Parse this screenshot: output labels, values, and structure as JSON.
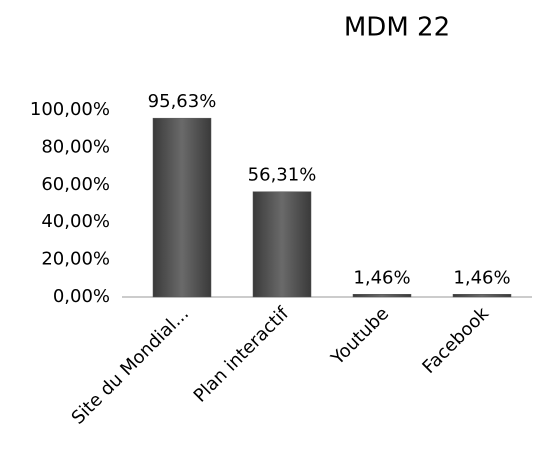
{
  "chart_data": {
    "type": "bar",
    "title": "MDM 22",
    "categories": [
      "Site du Mondial...",
      "Plan interactif",
      "Youtube",
      "Facebook"
    ],
    "values": [
      95.63,
      56.31,
      1.46,
      1.46
    ],
    "value_labels": [
      "95,63%",
      "56,31%",
      "1,46%",
      "1,46%"
    ],
    "color": "#555555",
    "ylim": [
      0,
      100
    ],
    "yticks": [
      {
        "value": 0,
        "label": "0,00%"
      },
      {
        "value": 20,
        "label": "20,00%"
      },
      {
        "value": 40,
        "label": "40,00%"
      },
      {
        "value": 60,
        "label": "60,00%"
      },
      {
        "value": 80,
        "label": "80,00%"
      },
      {
        "value": 100,
        "label": "100,00%"
      }
    ],
    "grid": false
  }
}
